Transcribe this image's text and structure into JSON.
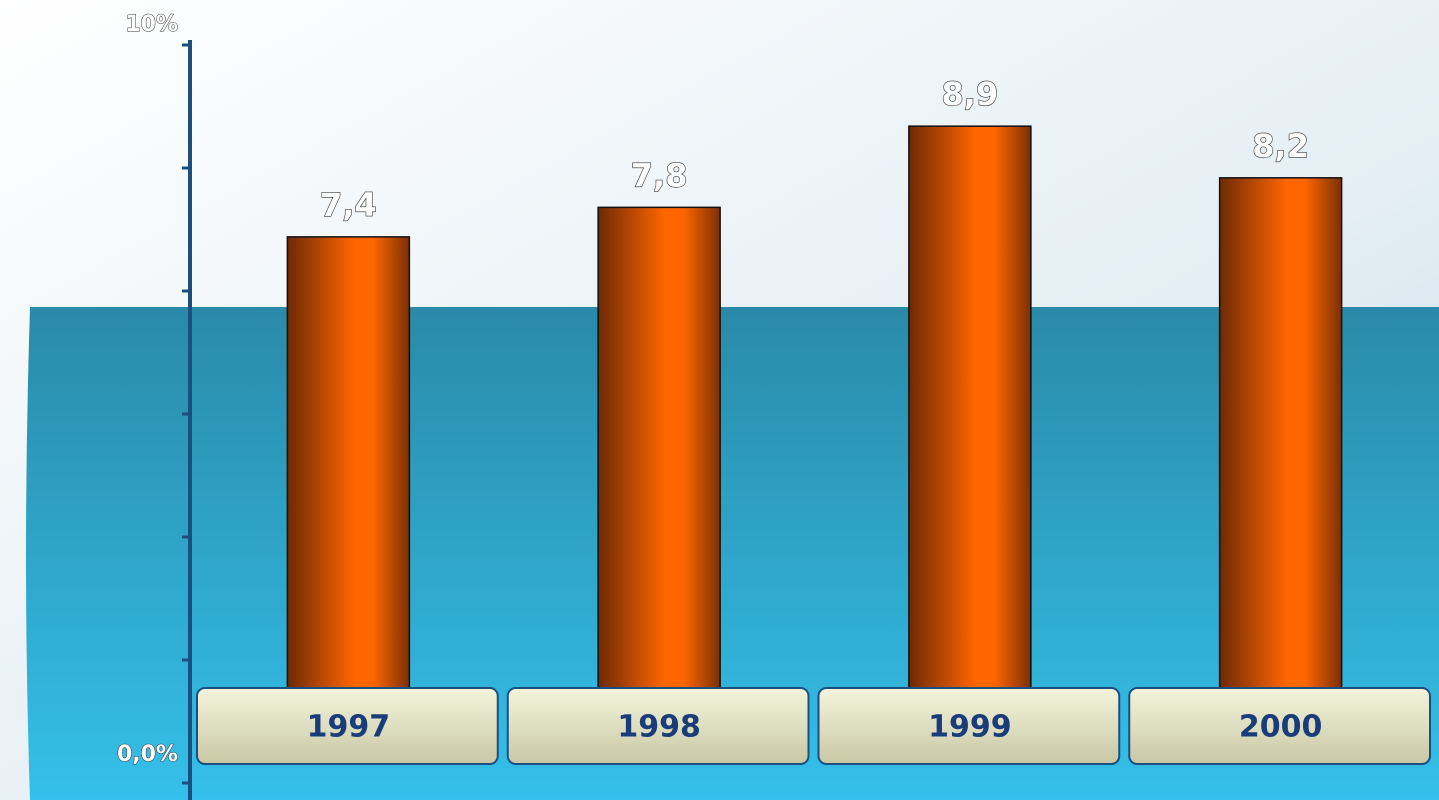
{
  "chart_data": {
    "type": "bar",
    "categories": [
      "1997",
      "1998",
      "1999",
      "2000"
    ],
    "values": [
      7.4,
      7.8,
      8.9,
      8.2
    ],
    "value_labels": [
      "7,4",
      "7,8",
      "8,9",
      "8,2"
    ],
    "ylim": [
      0,
      10
    ],
    "yticks": [
      {
        "value": 10,
        "label": "10%"
      },
      {
        "value": 0,
        "label": "0,0%"
      }
    ],
    "color": "#ff6600"
  }
}
